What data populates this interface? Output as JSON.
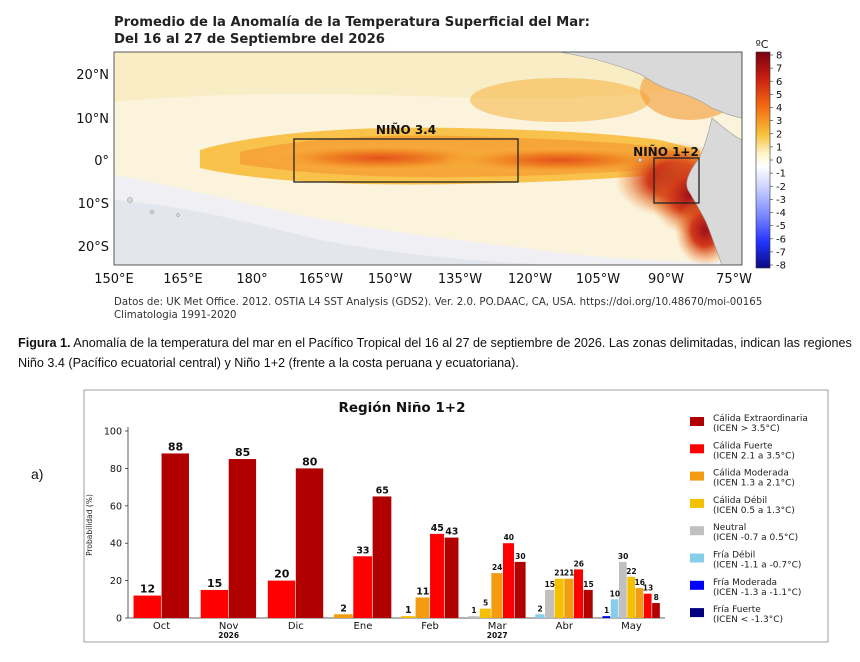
{
  "map": {
    "title_line1": "Promedio de la Anomalía de la Temperatura Superficial del Mar:",
    "title_line2": "Del 16 al 27 de Septiembre del 2026",
    "colorbar_unit": "ºC",
    "colorbar_ticks": [
      "8",
      "7",
      "6",
      "5",
      "4",
      "3",
      "2",
      "1",
      "0",
      "-1",
      "-2",
      "-3",
      "-4",
      "-5",
      "-6",
      "-7",
      "-8"
    ],
    "lat_labels": [
      "20°N",
      "10°N",
      "0°",
      "10°S",
      "20°S"
    ],
    "lon_labels": [
      "150°E",
      "165°E",
      "180°",
      "165°W",
      "150°W",
      "135°W",
      "120°W",
      "105°W",
      "90°W",
      "75°W"
    ],
    "region_nino34": "NIÑO 3.4",
    "region_nino12": "NIÑO 1+2",
    "source_line1": "Datos de: UK Met Office. 2012. OSTIA L4 SST Analysis (GDS2). Ver. 2.0. PO.DAAC, CA, USA. https://doi.org/10.48670/moi-00165",
    "source_line2": "Climatologia 1991-2020"
  },
  "caption": {
    "label": "Figura 1.",
    "text": " Anomalía de la temperatura del mar en el Pacífico Tropical del 16 al 27 de septiembre de 2026. Las zonas delimitadas, indican las regiones Niño 3.4 (Pacífico ecuatorial central) y Niño 1+2 (frente a la costa peruana y ecuatoriana)."
  },
  "panel_letter": "a)",
  "chart_data": {
    "type": "bar",
    "title": "Región Niño 1+2",
    "ylabel": "Probabilidad (%)",
    "ylim": [
      0,
      100
    ],
    "yticks": [
      0,
      20,
      40,
      60,
      80,
      100
    ],
    "categories": [
      "Oct",
      "Nov",
      "Dic",
      "Ene",
      "Feb",
      "Mar",
      "Abr",
      "May"
    ],
    "year_labels": [
      {
        "category_index": 1,
        "text": "2026"
      },
      {
        "category_index": 5,
        "text": "2027"
      }
    ],
    "series": [
      {
        "name": "Fría Fuerte",
        "range": "(ICEN < -1.3°C)",
        "color": "#000080",
        "values": [
          0,
          0,
          0,
          0,
          0,
          0,
          0,
          0
        ]
      },
      {
        "name": "Fría Moderada",
        "range": "(ICEN -1.3 a -1.1°C)",
        "color": "#0000ff",
        "values": [
          0,
          0,
          0,
          0,
          0,
          0,
          0,
          1
        ]
      },
      {
        "name": "Fría Débil",
        "range": "(ICEN -1.1 a -0.7°C)",
        "color": "#87ceeb",
        "values": [
          0,
          0,
          0,
          0,
          0,
          0,
          2,
          10
        ]
      },
      {
        "name": "Neutral",
        "range": "(ICEN -0.7 a 0.5°C)",
        "color": "#c0c0c0",
        "values": [
          0,
          0,
          0,
          0,
          0,
          1,
          15,
          30
        ]
      },
      {
        "name": "Cálida Débil",
        "range": "(ICEN 0.5 a 1.3°C)",
        "color": "#f5c000",
        "values": [
          0,
          0,
          0,
          0,
          1,
          5,
          21,
          22
        ]
      },
      {
        "name": "Cálida Moderada",
        "range": "(ICEN 1.3 a 2.1°C)",
        "color": "#f39c12",
        "values": [
          0,
          0,
          0,
          2,
          11,
          24,
          21,
          16
        ]
      },
      {
        "name": "Cálida Fuerte",
        "range": "(ICEN 2.1 a 3.5°C)",
        "color": "#ff0000",
        "values": [
          12,
          15,
          20,
          33,
          45,
          40,
          26,
          13
        ]
      },
      {
        "name": "Cálida Extraordinaria",
        "range": "(ICEN > 3.5°C)",
        "color": "#b00000",
        "values": [
          88,
          85,
          80,
          65,
          43,
          30,
          15,
          8
        ]
      }
    ],
    "legend_order": [
      "Cálida Extraordinaria",
      "Cálida Fuerte",
      "Cálida Moderada",
      "Cálida Débil",
      "Neutral",
      "Fría Débil",
      "Fría Moderada",
      "Fría Fuerte"
    ],
    "legend_position": "right",
    "grid": false
  }
}
